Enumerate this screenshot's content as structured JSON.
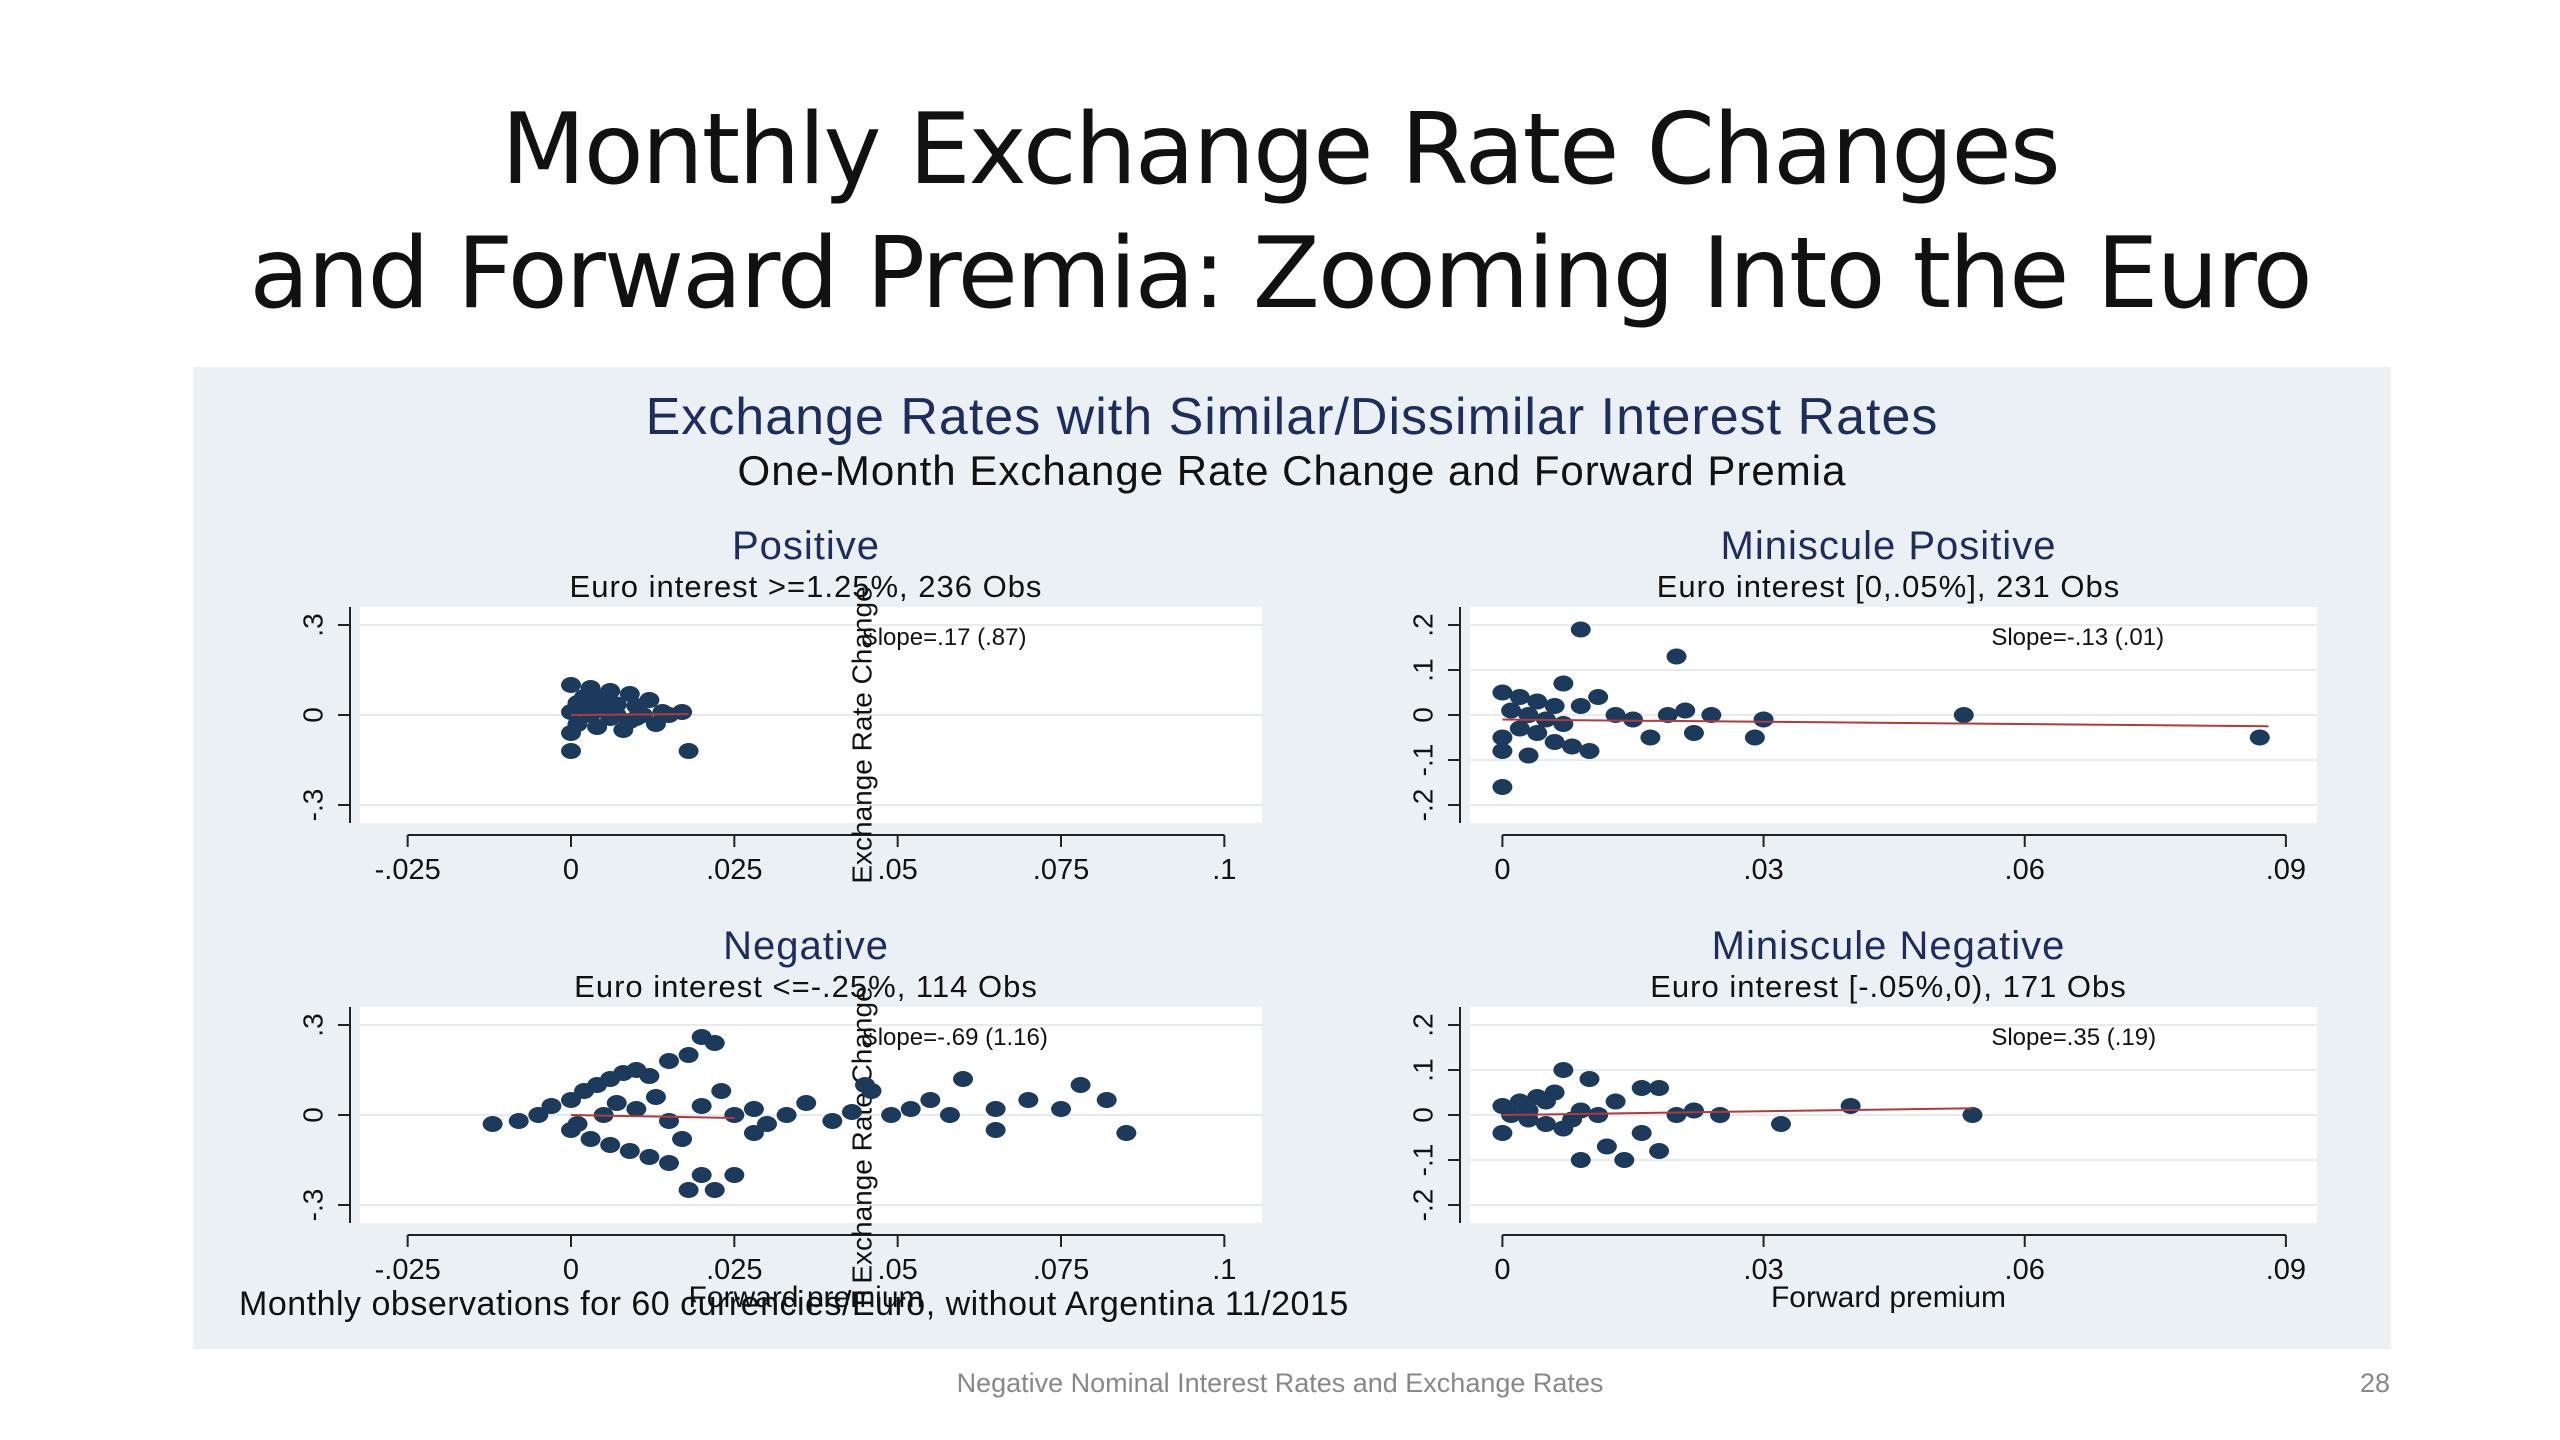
{
  "slide": {
    "title_line1": "Monthly Exchange Rate Changes",
    "title_line2": "and Forward Premia: Zooming Into the Euro",
    "footer": "Negative Nominal Interest Rates and Exchange Rates",
    "page_number": "28"
  },
  "figure": {
    "title": "Exchange Rates with Similar/Dissimilar Interest Rates",
    "subtitle": "One-Month Exchange Rate Change and Forward Premia",
    "note": "Monthly observations for 60 currencies/Euro, without Argentina 11/2015",
    "background": "#eaf0f4",
    "marker_color": "#1b3a5c",
    "fit_color": "#b23a3a"
  },
  "chart_data": [
    {
      "type": "scatter",
      "title": "Positive",
      "subtitle": "Euro interest >=1.25%, 236 Obs",
      "ylabel": "Exchange Rate Change",
      "xlabel": "",
      "annotation": "Slope=.17 (.87)",
      "xticks": [
        "-.025",
        "0",
        ".025",
        ".05",
        ".075",
        ".1"
      ],
      "xtick_values": [
        -0.025,
        0,
        0.025,
        0.05,
        0.075,
        0.1
      ],
      "yticks": [
        "-.3",
        "0",
        ".3"
      ],
      "ytick_values": [
        -0.3,
        0,
        0.3
      ],
      "xlim": [
        -0.03,
        0.105
      ],
      "ylim": [
        -0.36,
        0.36
      ],
      "fit": {
        "x": [
          0,
          0.018
        ],
        "y": [
          0.0,
          0.003
        ]
      },
      "points": [
        [
          0.0,
          0.1
        ],
        [
          0.003,
          0.09
        ],
        [
          0.006,
          0.08
        ],
        [
          0.009,
          0.07
        ],
        [
          0.002,
          0.06
        ],
        [
          0.004,
          0.05
        ],
        [
          0.001,
          0.04
        ],
        [
          0.007,
          0.035
        ],
        [
          0.01,
          0.03
        ],
        [
          0.012,
          0.05
        ],
        [
          0.005,
          0.02
        ],
        [
          0.0,
          0.01
        ],
        [
          0.003,
          0.0
        ],
        [
          0.006,
          -0.01
        ],
        [
          0.009,
          -0.02
        ],
        [
          0.011,
          0.0
        ],
        [
          0.014,
          0.01
        ],
        [
          0.001,
          -0.03
        ],
        [
          0.004,
          -0.04
        ],
        [
          0.008,
          -0.05
        ],
        [
          0.0,
          -0.06
        ],
        [
          0.015,
          0.0
        ],
        [
          0.013,
          -0.03
        ],
        [
          0.0,
          -0.12
        ],
        [
          0.017,
          0.01
        ],
        [
          0.018,
          -0.12
        ],
        [
          0.002,
          0.02
        ],
        [
          0.007,
          0.0
        ],
        [
          0.01,
          -0.01
        ],
        [
          0.005,
          0.06
        ]
      ]
    },
    {
      "type": "scatter",
      "title": "Miniscule Positive",
      "subtitle": "Euro interest [0,.05%], 231 Obs",
      "ylabel": "",
      "xlabel": "",
      "annotation": "Slope=-.13 (.01)",
      "xticks": [
        "0",
        ".03",
        ".06",
        ".09"
      ],
      "xtick_values": [
        0,
        0.03,
        0.06,
        0.09
      ],
      "yticks": [
        "-.2",
        "-.1",
        "0",
        ".1",
        ".2"
      ],
      "ytick_values": [
        -0.2,
        -0.1,
        0,
        0.1,
        0.2
      ],
      "xlim": [
        -0.002,
        0.093
      ],
      "ylim": [
        -0.24,
        0.24
      ],
      "fit": {
        "x": [
          0,
          0.088
        ],
        "y": [
          -0.01,
          -0.025
        ]
      },
      "points": [
        [
          0.009,
          0.19
        ],
        [
          0.02,
          0.13
        ],
        [
          0.0,
          0.05
        ],
        [
          0.002,
          0.04
        ],
        [
          0.004,
          0.03
        ],
        [
          0.006,
          0.02
        ],
        [
          0.001,
          0.01
        ],
        [
          0.003,
          0.0
        ],
        [
          0.005,
          -0.01
        ],
        [
          0.007,
          -0.02
        ],
        [
          0.002,
          -0.03
        ],
        [
          0.004,
          -0.04
        ],
        [
          0.0,
          -0.05
        ],
        [
          0.006,
          -0.06
        ],
        [
          0.008,
          -0.07
        ],
        [
          0.0,
          -0.08
        ],
        [
          0.003,
          -0.09
        ],
        [
          0.009,
          0.02
        ],
        [
          0.011,
          0.04
        ],
        [
          0.013,
          0.0
        ],
        [
          0.015,
          -0.01
        ],
        [
          0.017,
          -0.05
        ],
        [
          0.019,
          0.0
        ],
        [
          0.021,
          0.01
        ],
        [
          0.022,
          -0.04
        ],
        [
          0.024,
          0.0
        ],
        [
          0.03,
          -0.01
        ],
        [
          0.029,
          -0.05
        ],
        [
          0.053,
          0.0
        ],
        [
          0.087,
          -0.05
        ],
        [
          0.0,
          -0.16
        ],
        [
          0.007,
          0.07
        ],
        [
          0.01,
          -0.08
        ]
      ]
    },
    {
      "type": "scatter",
      "title": "Negative",
      "subtitle": "Euro interest <=-.25%, 114 Obs",
      "ylabel": "Exchange Rate Change",
      "xlabel": "Forward premium",
      "annotation": "Slope=-.69 (1.16)",
      "xticks": [
        "-.025",
        "0",
        ".025",
        ".05",
        ".075",
        ".1"
      ],
      "xtick_values": [
        -0.025,
        0,
        0.025,
        0.05,
        0.075,
        0.1
      ],
      "yticks": [
        "-.3",
        "0",
        ".3"
      ],
      "ytick_values": [
        -0.3,
        0,
        0.3
      ],
      "xlim": [
        -0.03,
        0.105
      ],
      "ylim": [
        -0.36,
        0.36
      ],
      "fit": {
        "x": [
          0,
          0.025
        ],
        "y": [
          0.0,
          -0.01
        ]
      },
      "points": [
        [
          -0.012,
          -0.03
        ],
        [
          -0.008,
          -0.02
        ],
        [
          -0.005,
          0.0
        ],
        [
          -0.003,
          0.03
        ],
        [
          0.0,
          0.05
        ],
        [
          0.002,
          0.08
        ],
        [
          0.004,
          0.1
        ],
        [
          0.006,
          0.12
        ],
        [
          0.008,
          0.14
        ],
        [
          0.01,
          0.15
        ],
        [
          0.012,
          0.13
        ],
        [
          0.015,
          0.18
        ],
        [
          0.018,
          0.2
        ],
        [
          0.02,
          0.26
        ],
        [
          0.022,
          0.24
        ],
        [
          0.0,
          -0.05
        ],
        [
          0.003,
          -0.08
        ],
        [
          0.006,
          -0.1
        ],
        [
          0.009,
          -0.12
        ],
        [
          0.012,
          -0.14
        ],
        [
          0.015,
          -0.16
        ],
        [
          0.02,
          -0.2
        ],
        [
          0.022,
          -0.25
        ],
        [
          0.025,
          -0.2
        ],
        [
          0.018,
          -0.25
        ],
        [
          0.025,
          0.0
        ],
        [
          0.028,
          0.02
        ],
        [
          0.03,
          -0.03
        ],
        [
          0.033,
          0.0
        ],
        [
          0.036,
          0.04
        ],
        [
          0.04,
          -0.02
        ],
        [
          0.043,
          0.01
        ],
        [
          0.046,
          0.08
        ],
        [
          0.049,
          0.0
        ],
        [
          0.052,
          0.02
        ],
        [
          0.055,
          0.05
        ],
        [
          0.058,
          0.0
        ],
        [
          0.06,
          0.12
        ],
        [
          0.065,
          -0.05
        ],
        [
          0.07,
          0.05
        ],
        [
          0.075,
          0.02
        ],
        [
          0.078,
          0.1
        ],
        [
          0.082,
          0.05
        ],
        [
          0.085,
          -0.06
        ],
        [
          0.065,
          0.02
        ],
        [
          0.045,
          0.1
        ],
        [
          0.005,
          0.0
        ],
        [
          0.01,
          0.02
        ],
        [
          0.015,
          -0.02
        ],
        [
          0.02,
          0.03
        ],
        [
          0.001,
          -0.03
        ],
        [
          0.007,
          0.04
        ],
        [
          0.013,
          0.06
        ],
        [
          0.017,
          -0.08
        ],
        [
          0.023,
          0.08
        ],
        [
          0.028,
          -0.06
        ]
      ]
    },
    {
      "type": "scatter",
      "title": "Miniscule Negative",
      "subtitle": "Euro interest [-.05%,0), 171 Obs",
      "ylabel": "",
      "xlabel": "Forward premium",
      "annotation": "Slope=.35 (.19)",
      "xticks": [
        "0",
        ".03",
        ".06",
        ".09"
      ],
      "xtick_values": [
        0,
        0.03,
        0.06,
        0.09
      ],
      "yticks": [
        "-.2",
        "-.1",
        "0",
        ".1",
        ".2"
      ],
      "ytick_values": [
        -0.2,
        -0.1,
        0,
        0.1,
        0.2
      ],
      "xlim": [
        -0.002,
        0.093
      ],
      "ylim": [
        -0.24,
        0.24
      ],
      "fit": {
        "x": [
          0,
          0.054
        ],
        "y": [
          0.0,
          0.015
        ]
      },
      "points": [
        [
          0.0,
          0.02
        ],
        [
          0.002,
          0.03
        ],
        [
          0.004,
          0.04
        ],
        [
          0.006,
          0.05
        ],
        [
          0.007,
          0.1
        ],
        [
          0.01,
          0.08
        ],
        [
          0.001,
          0.0
        ],
        [
          0.003,
          -0.01
        ],
        [
          0.005,
          -0.02
        ],
        [
          0.007,
          -0.03
        ],
        [
          0.009,
          0.01
        ],
        [
          0.011,
          0.0
        ],
        [
          0.013,
          0.03
        ],
        [
          0.0,
          -0.04
        ],
        [
          0.009,
          -0.1
        ],
        [
          0.012,
          -0.07
        ],
        [
          0.016,
          -0.04
        ],
        [
          0.018,
          -0.08
        ],
        [
          0.018,
          0.06
        ],
        [
          0.02,
          0.0
        ],
        [
          0.016,
          0.06
        ],
        [
          0.022,
          0.01
        ],
        [
          0.025,
          0.0
        ],
        [
          0.032,
          -0.02
        ],
        [
          0.04,
          0.02
        ],
        [
          0.054,
          0.0
        ],
        [
          0.014,
          -0.1
        ],
        [
          0.005,
          0.03
        ],
        [
          0.003,
          0.01
        ],
        [
          0.008,
          -0.01
        ]
      ]
    }
  ]
}
